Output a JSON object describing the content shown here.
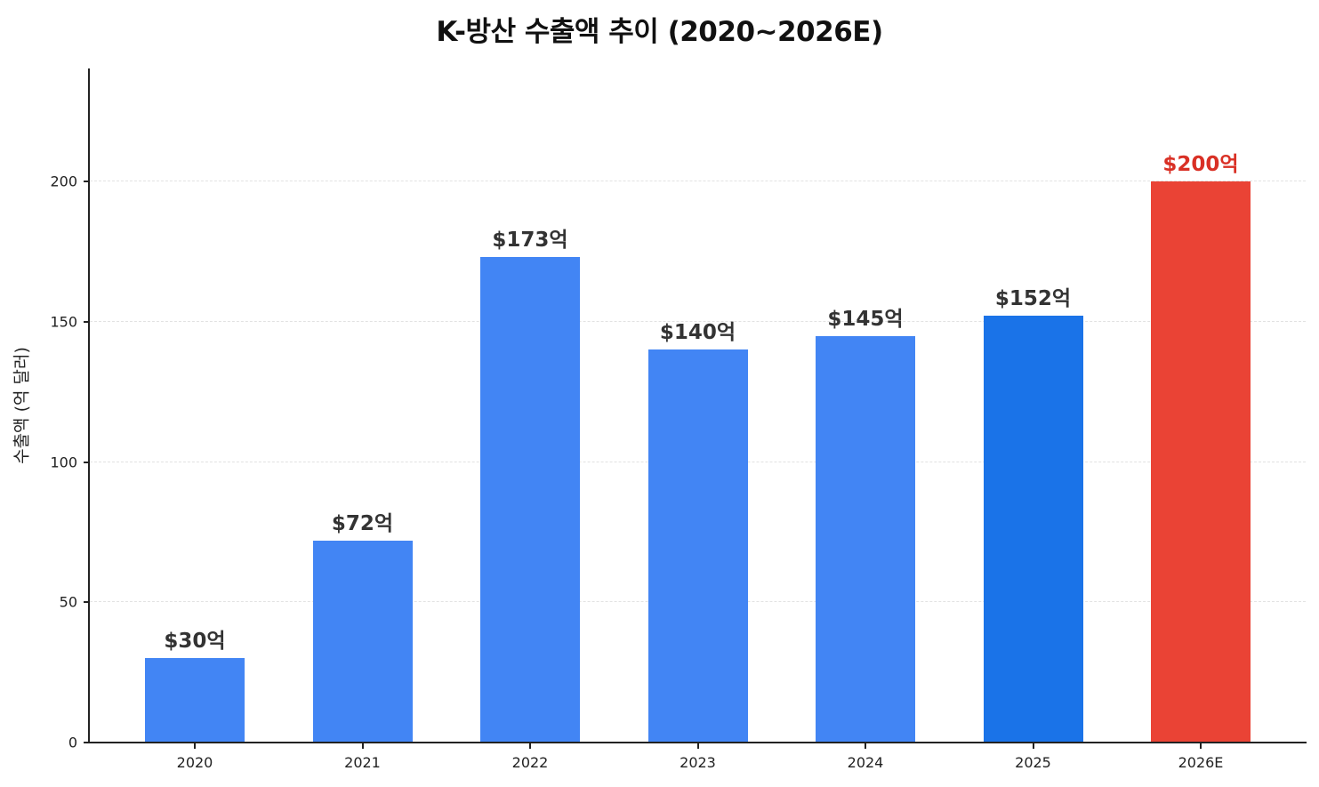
{
  "chart_data": {
    "type": "bar",
    "title": "K-방산 수출액 추이 (2020~2026E)",
    "xlabel": "",
    "ylabel": "수출액 (억 달러)",
    "categories": [
      "2020",
      "2021",
      "2022",
      "2023",
      "2024",
      "2025",
      "2026E"
    ],
    "values": [
      30,
      72,
      173,
      140,
      145,
      152,
      200
    ],
    "data_labels": [
      "$30억",
      "$72억",
      "$173억",
      "$140억",
      "$145억",
      "$152억",
      "$200억"
    ],
    "bar_colors": [
      "#4285f4",
      "#4285f4",
      "#4285f4",
      "#4285f4",
      "#4285f4",
      "#1a73e8",
      "#ea4335"
    ],
    "label_colors": [
      "#333333",
      "#333333",
      "#333333",
      "#333333",
      "#333333",
      "#333333",
      "#d93025"
    ],
    "ylim": [
      0,
      245
    ],
    "yticks": [
      0,
      50,
      100,
      150,
      200
    ],
    "grid": "y-dashed",
    "legend": null
  }
}
